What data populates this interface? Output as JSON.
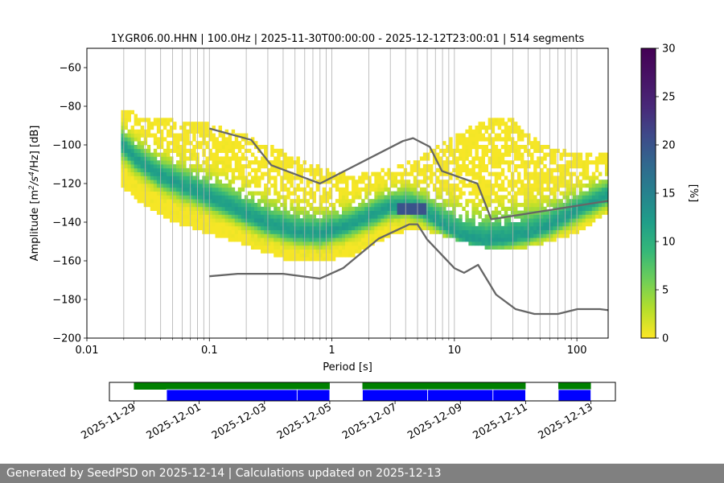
{
  "chart_data": [
    {
      "type": "heatmap",
      "title": "1Y.GR06.00.HHN | 100.0Hz | 2025-11-30T00:00:00 - 2025-12-12T23:00:01 | 514 segments",
      "xlabel": "Period [s]",
      "ylabel_parts": {
        "before": "Amplitude [m",
        "sup1": "2",
        "mid": "/s",
        "sup2": "4",
        "after": "/Hz] [dB]"
      },
      "x_scale": "log",
      "xlim": [
        0.01,
        180
      ],
      "ylim": [
        -200,
        -50
      ],
      "grid": true,
      "x_major_ticks": [
        {
          "value": 0.01,
          "label": "0.01"
        },
        {
          "value": 0.1,
          "label": "0.1"
        },
        {
          "value": 1,
          "label": "1"
        },
        {
          "value": 10,
          "label": "10"
        },
        {
          "value": 100,
          "label": "100"
        }
      ],
      "y_ticks": [
        {
          "value": -60,
          "label": "−60"
        },
        {
          "value": -80,
          "label": "−80"
        },
        {
          "value": -100,
          "label": "−100"
        },
        {
          "value": -120,
          "label": "−120"
        },
        {
          "value": -140,
          "label": "−140"
        },
        {
          "value": -160,
          "label": "−160"
        },
        {
          "value": -180,
          "label": "−180"
        },
        {
          "value": -200,
          "label": "−200"
        }
      ],
      "period_range": [
        0.019,
        180
      ],
      "mode_curve": {
        "x": [
          0.019,
          0.025,
          0.04,
          0.06,
          0.1,
          0.15,
          0.2,
          0.3,
          0.5,
          0.8,
          1.2,
          2,
          3,
          4,
          5,
          6,
          8,
          12,
          18,
          25,
          40,
          60,
          100,
          180
        ],
        "y": [
          -100,
          -108,
          -117,
          -122,
          -128,
          -133,
          -137,
          -142,
          -146,
          -147,
          -144,
          -138,
          -133,
          -132,
          -134,
          -137,
          -142,
          -149,
          -151,
          -150,
          -147,
          -143,
          -135,
          -127
        ]
      },
      "lower_bound": {
        "x": [
          0.019,
          0.03,
          0.05,
          0.1,
          0.2,
          0.4,
          0.8,
          1.5,
          3,
          5,
          10,
          20,
          40,
          100,
          180
        ],
        "y": [
          -122,
          -133,
          -141,
          -147,
          -153,
          -160,
          -162,
          -158,
          -148,
          -144,
          -150,
          -155,
          -154,
          -147,
          -136
        ]
      },
      "upper_bound": {
        "x": [
          0.019,
          0.03,
          0.05,
          0.1,
          0.2,
          0.4,
          0.8,
          1.5,
          3,
          5,
          8,
          12,
          20,
          30,
          50,
          100,
          180
        ],
        "y": [
          -81,
          -87,
          -88,
          -90,
          -96,
          -104,
          -112,
          -117,
          -113,
          -108,
          -100,
          -93,
          -87,
          -88,
          -100,
          -106,
          -104
        ]
      },
      "hnm": {
        "x": [
          0.1,
          0.22,
          0.32,
          0.8,
          3.8,
          4.6,
          6.3,
          7.9,
          15.4,
          20,
          354.8
        ],
        "y": [
          -91.5,
          -97.4,
          -110.5,
          -120,
          -98,
          -96.5,
          -101,
          -113.5,
          -120,
          -138.5,
          -126
        ]
      },
      "lnm": {
        "x": [
          0.1,
          0.17,
          0.4,
          0.8,
          1.24,
          2.4,
          4.3,
          5,
          6,
          10,
          12,
          15.6,
          21.9,
          31.6,
          45,
          70,
          101,
          154,
          328
        ],
        "y": [
          -168,
          -166.7,
          -166.7,
          -169.2,
          -163.7,
          -148.6,
          -141.1,
          -141.1,
          -149,
          -163.8,
          -166.2,
          -162.1,
          -177.5,
          -185,
          -187.5,
          -187.5,
          -185,
          -185,
          -187.5
        ]
      },
      "colorbar": {
        "label": "[%]",
        "range": [
          0,
          30
        ],
        "ticks": [
          0,
          5,
          10,
          15,
          20,
          25,
          30
        ],
        "colormap": "viridis_r"
      }
    },
    {
      "type": "timeline",
      "x_ticks": [
        "2025-11-29",
        "2025-12-01",
        "2025-12-03",
        "2025-12-05",
        "2025-12-07",
        "2025-12-09",
        "2025-12-11",
        "2025-12-13"
      ],
      "xlim": [
        "2025-11-28T06:00",
        "2025-12-13T18:00"
      ],
      "coverage_top": [
        {
          "start": "2025-11-29T00:00",
          "end": "2025-12-05T00:00"
        },
        {
          "start": "2025-12-06T00:00",
          "end": "2025-12-11T00:00"
        },
        {
          "start": "2025-12-12T00:00",
          "end": "2025-12-13T00:00"
        }
      ],
      "coverage_bottom": [
        {
          "start": "2025-11-30T00:00",
          "end": "2025-12-04T00:00"
        },
        {
          "start": "2025-12-04T00:00",
          "end": "2025-12-05T00:00"
        },
        {
          "start": "2025-12-06T00:00",
          "end": "2025-12-08T00:00"
        },
        {
          "start": "2025-12-08T00:00",
          "end": "2025-12-10T00:00"
        },
        {
          "start": "2025-12-10T00:00",
          "end": "2025-12-11T00:00"
        },
        {
          "start": "2025-12-12T00:00",
          "end": "2025-12-13T00:00"
        }
      ],
      "colors": {
        "top": "#008000",
        "bottom": "#0000ff"
      }
    }
  ],
  "footer": {
    "text": "Generated by SeedPSD on 2025-12-14 | Calculations updated on 2025-12-13"
  }
}
